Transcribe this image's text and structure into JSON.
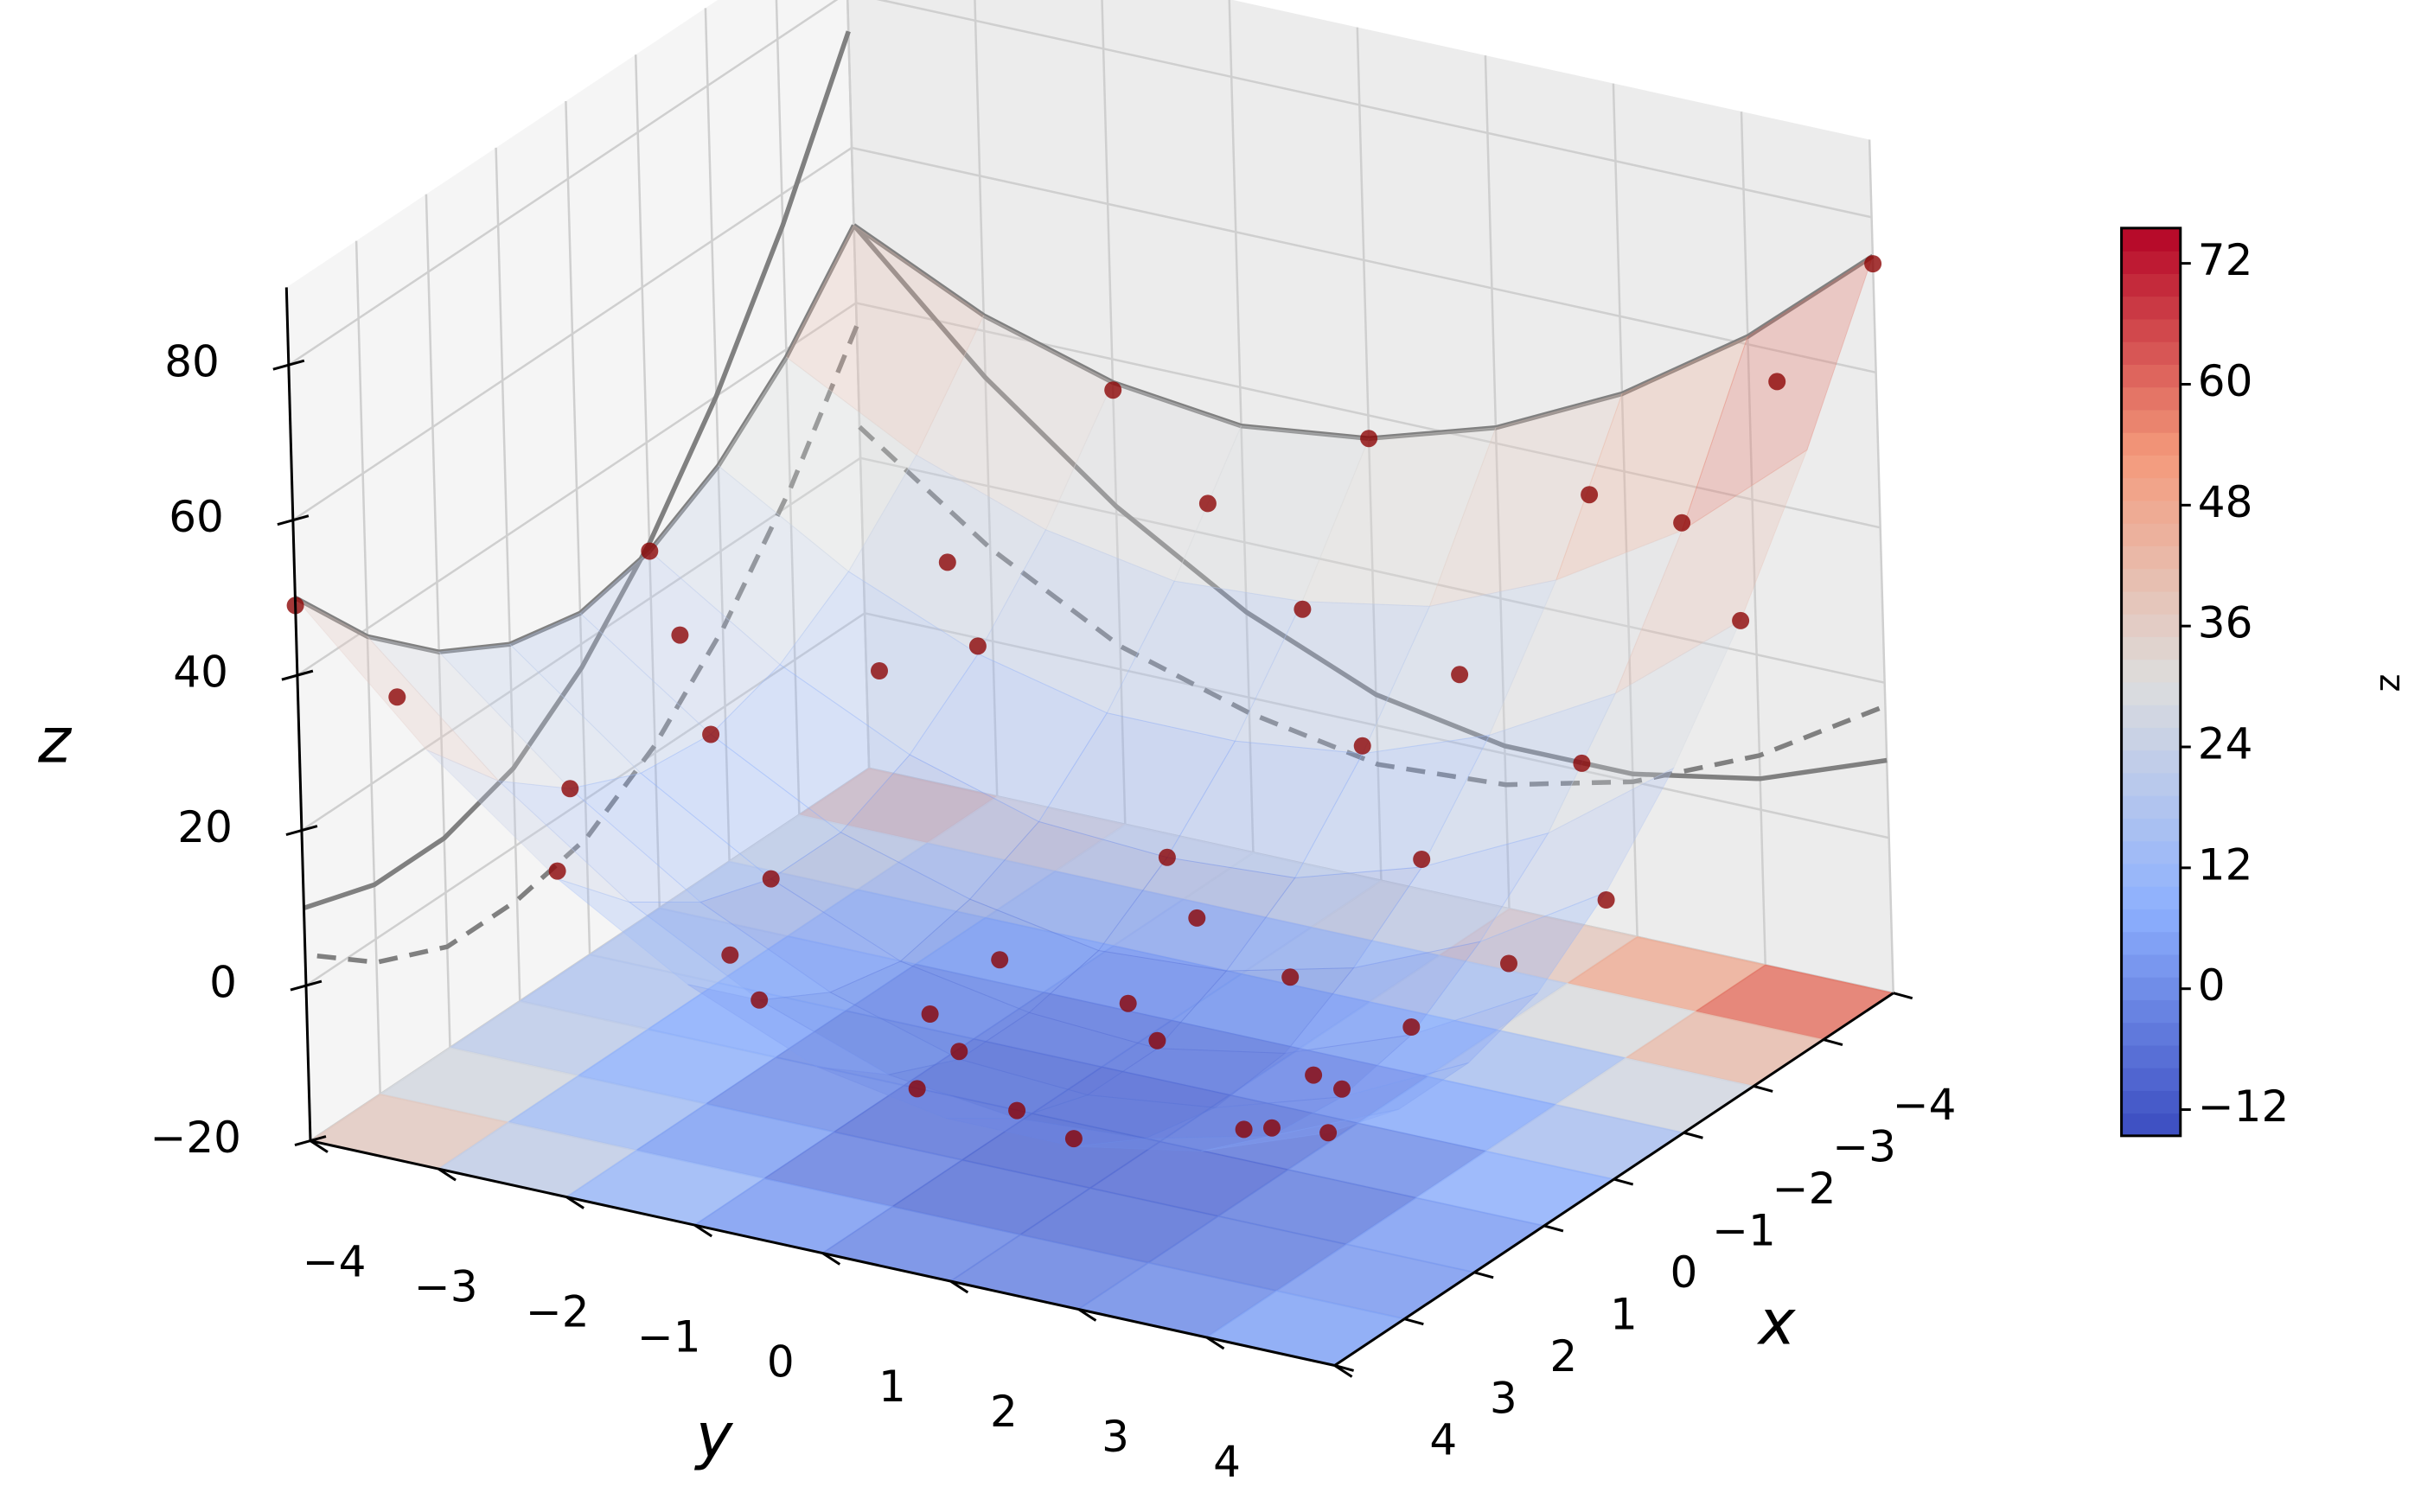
{
  "chart_data": {
    "type": "surface3d",
    "x_label": "x",
    "y_label": "y",
    "z_label": "z",
    "xlim": [
      -4,
      4
    ],
    "ylim": [
      -4,
      4
    ],
    "zlim": [
      -20,
      90
    ],
    "xticks": [
      {
        "value": -4,
        "label": "−4"
      },
      {
        "value": -3,
        "label": "−3"
      },
      {
        "value": -2,
        "label": "−2"
      },
      {
        "value": -1,
        "label": "−1"
      },
      0,
      1,
      2,
      3,
      4
    ],
    "yticks": [
      {
        "value": -4,
        "label": "−4"
      },
      {
        "value": -3,
        "label": "−3"
      },
      {
        "value": -2,
        "label": "−2"
      },
      {
        "value": -1,
        "label": "−1"
      },
      0,
      1,
      2,
      3,
      4
    ],
    "zticks": [
      {
        "value": -20,
        "label": "−20"
      },
      0,
      20,
      40,
      60,
      80
    ],
    "grid": true,
    "surface": {
      "colormap": "coolwarm",
      "x": [
        -4,
        -3,
        -2,
        -1,
        0,
        1,
        2,
        3,
        4
      ],
      "y": [
        -4,
        -3,
        -2,
        -1,
        0,
        1,
        2,
        3,
        4
      ],
      "z": [
        [
          50,
          42,
          37,
          35,
          37,
          42,
          50,
          61,
          75
        ],
        [
          39,
          30,
          24,
          21,
          22,
          25,
          32,
          42,
          56
        ],
        [
          31,
          21,
          14,
          10,
          10,
          12,
          18,
          27,
          40
        ],
        [
          26,
          15,
          7,
          2,
          1,
          2,
          7,
          15,
          27
        ],
        [
          24,
          12,
          3,
          -2,
          -5,
          -4,
          0,
          7,
          17
        ],
        [
          26,
          13,
          3,
          -4,
          -7,
          -8,
          -5,
          1,
          10
        ],
        [
          31,
          17,
          6,
          -2,
          -7,
          -8,
          -6,
          -1,
          7
        ],
        [
          39,
          24,
          12,
          3,
          -3,
          -5,
          -4,
          0,
          7
        ],
        [
          50,
          34,
          21,
          11,
          4,
          1,
          1,
          4,
          10
        ]
      ]
    },
    "scatter": {
      "color": "#8b0000",
      "x": [
        -3.5,
        3.5,
        0.5,
        2,
        -2,
        1,
        -1,
        3,
        -3,
        0,
        2.5,
        -2.5,
        1.5,
        -1.5,
        4,
        -4,
        0,
        4,
        -4,
        -1,
        3,
        -3,
        2,
        -2,
        0.5,
        -0.5,
        1,
        -3.5,
        3.5,
        0.5,
        -0.5,
        2.5,
        -2.5,
        4,
        -4,
        4,
        1.5,
        -1.5,
        3,
        -2,
        1,
        -3.5,
        2,
        0,
        -1
      ],
      "y": [
        3.5,
        -3.5,
        0.5,
        3,
        -2,
        -2,
        2,
        1,
        0,
        -3,
        -1.5,
        1.5,
        2.5,
        -2.5,
        2,
        0,
        4,
        -2,
        -2,
        -4,
        3,
        3,
        -3,
        4,
        -0.5,
        0.5,
        1,
        -1,
        0.5,
        3.5,
        -3.5,
        2.5,
        -2.5,
        4,
        4,
        -4,
        -0.5,
        3,
        -1,
        1,
        3,
        2,
        0,
        1.5,
        0
      ],
      "z": [
        60,
        36,
        -7,
        0,
        15,
        3,
        8,
        -4,
        21,
        12,
        4,
        21,
        -3,
        13,
        2,
        37,
        16,
        22,
        36,
        26,
        1,
        43,
        17,
        40,
        -5,
        -2,
        -7,
        28,
        0,
        9,
        20,
        -4,
        21,
        10,
        74,
        49,
        -6,
        21,
        3,
        13,
        2,
        40,
        -6,
        -3,
        1
      ]
    },
    "colorbar": {
      "label": "z",
      "clim": [
        -14.6,
        75.5
      ],
      "ticks": [
        {
          "value": -12,
          "label": "−12"
        },
        0,
        12,
        24,
        36,
        48,
        60,
        72
      ]
    }
  }
}
